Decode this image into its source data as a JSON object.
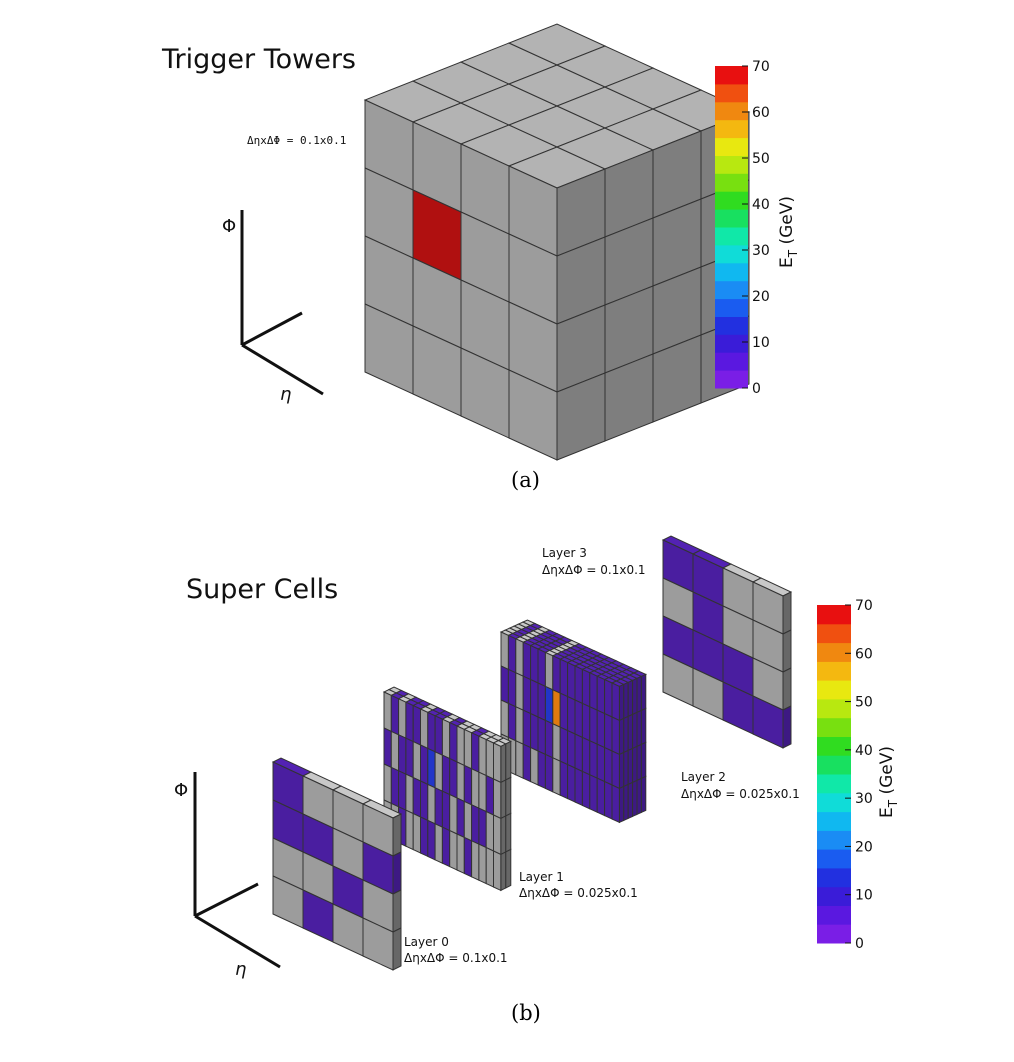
{
  "panel_a": {
    "title": "Trigger Towers",
    "granularity": "ΔηxΔΦ = 0.1x0.1",
    "caption": "(a)",
    "axis_phi": "Φ",
    "axis_eta": "η",
    "colorbar": {
      "label_main": "E",
      "label_sub": "T",
      "label_unit": " (GeV)",
      "ticks": [
        "0",
        "10",
        "20",
        "30",
        "40",
        "50",
        "60",
        "70"
      ],
      "min": 0,
      "max": 70
    }
  },
  "panel_b": {
    "title": "Super Cells",
    "caption": "(b)",
    "axis_phi": "Φ",
    "axis_eta": "η",
    "layers": [
      {
        "name": "Layer 0",
        "granularity": "ΔηxΔΦ = 0.1x0.1"
      },
      {
        "name": "Layer 1",
        "granularity": "ΔηxΔΦ = 0.025x0.1"
      },
      {
        "name": "Layer 2",
        "granularity": "ΔηxΔΦ = 0.025x0.1"
      },
      {
        "name": "Layer 3",
        "granularity": "ΔηxΔΦ = 0.1x0.1"
      }
    ],
    "colorbar": {
      "label_main": "E",
      "label_sub": "T",
      "label_unit": " (GeV)",
      "ticks": [
        "0",
        "10",
        "20",
        "30",
        "40",
        "50",
        "60",
        "70"
      ],
      "min": 0,
      "max": 70
    }
  },
  "colors": {
    "cell_empty": "#9c9c9c",
    "cell_side": "#7e7e7e",
    "cell_top": "#b3b3b3",
    "tower_hot": "#b01010",
    "supercell_low": "#4a1ea0",
    "supercell_mid": "#2236c8",
    "supercell_high": "#e07a10"
  }
}
